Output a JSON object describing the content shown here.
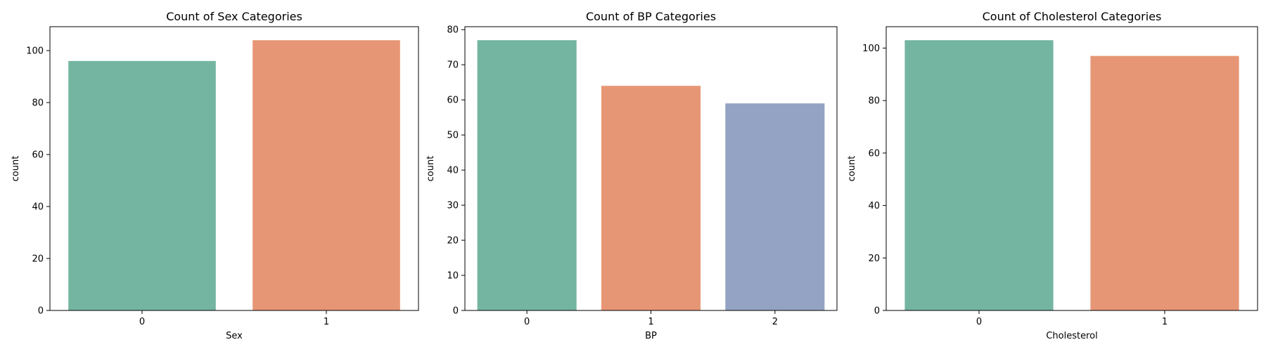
{
  "figure": {
    "background": "#ffffff"
  },
  "chart_data": [
    {
      "type": "bar",
      "title": "Count of Sex Categories",
      "xlabel": "Sex",
      "ylabel": "count",
      "categories": [
        "0",
        "1"
      ],
      "values": [
        96,
        104
      ],
      "colors": [
        "#73b5a0",
        "#e79675"
      ],
      "ylim": [
        0,
        109.2
      ],
      "yticks": [
        0,
        20,
        40,
        60,
        80,
        100
      ],
      "grid": false,
      "legend": "none"
    },
    {
      "type": "bar",
      "title": "Count of BP Categories",
      "xlabel": "BP",
      "ylabel": "count",
      "categories": [
        "0",
        "1",
        "2"
      ],
      "values": [
        77,
        64,
        59
      ],
      "colors": [
        "#73b5a0",
        "#e79675",
        "#94a3c3"
      ],
      "ylim": [
        0,
        80.85
      ],
      "yticks": [
        0,
        10,
        20,
        30,
        40,
        50,
        60,
        70,
        80
      ],
      "grid": false,
      "legend": "none"
    },
    {
      "type": "bar",
      "title": "Count of Cholesterol Categories",
      "xlabel": "Cholesterol",
      "ylabel": "count",
      "categories": [
        "0",
        "1"
      ],
      "values": [
        103,
        97
      ],
      "colors": [
        "#73b5a0",
        "#e79675"
      ],
      "ylim": [
        0,
        108.15
      ],
      "yticks": [
        0,
        20,
        40,
        60,
        80,
        100
      ],
      "grid": false,
      "legend": "none"
    }
  ]
}
